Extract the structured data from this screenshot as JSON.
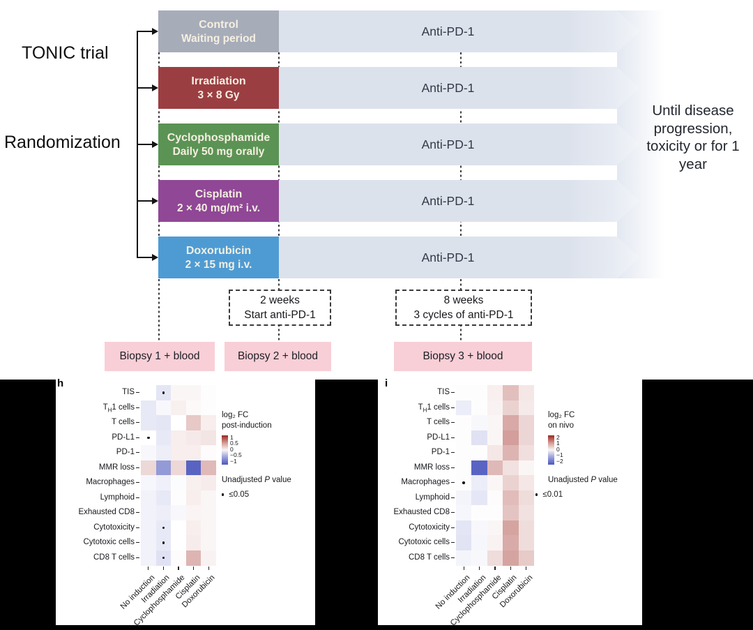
{
  "trial": {
    "title": "TONIC trial",
    "randomization_label": "Randomization",
    "arms": [
      {
        "name": "Control",
        "detail": "Waiting period",
        "color": "#a7acb9",
        "treatment": "Anti-PD-1"
      },
      {
        "name": "Irradiation",
        "detail": "3 × 8 Gy",
        "color": "#9b3e42",
        "treatment": "Anti-PD-1"
      },
      {
        "name": "Cyclophosphamide",
        "detail": "Daily 50 mg orally",
        "color": "#5b9354",
        "treatment": "Anti-PD-1"
      },
      {
        "name": "Cisplatin",
        "detail": "2 × 40 mg/m² i.v.",
        "color": "#8f4796",
        "treatment": "Anti-PD-1"
      },
      {
        "name": "Doxorubicin",
        "detail": "2 × 15 mg i.v.",
        "color": "#4e9bd4",
        "treatment": "Anti-PD-1"
      }
    ],
    "outcome_note": "Until disease progression, toxicity or for 1 year",
    "milestones": [
      {
        "line1": "2 weeks",
        "line2": "Start anti-PD-1"
      },
      {
        "line1": "8 weeks",
        "line2": "3 cycles of anti-PD-1"
      }
    ],
    "biopsies": [
      "Biopsy 1 + blood",
      "Biopsy 2 + blood",
      "Biopsy 3 + blood"
    ],
    "band_color": "#dce2ec",
    "biopsy_color": "#f9cfd7"
  },
  "heatmap_colors": {
    "positive": "#9d2820",
    "negative": "#4b57bd"
  },
  "chart_data": [
    {
      "type": "heatmap",
      "panel_label": "h",
      "rows": [
        "TIS",
        "TH1 cells",
        "T cells",
        "PD-L1",
        "PD-1",
        "MMR loss",
        "Macrophages",
        "Lymphoid",
        "Exhausted CD8",
        "Cytotoxicity",
        "Cytotoxic cells",
        "CD8 T cells"
      ],
      "columns": [
        "No induction",
        "Irradiation",
        "Cyclophosphamide",
        "Cisplatin",
        "Doxorubicin"
      ],
      "scale_max": 1,
      "values": [
        [
          0.0,
          -0.15,
          0.04,
          0.04,
          0.01
        ],
        [
          -0.13,
          -0.04,
          0.07,
          0.03,
          0.01
        ],
        [
          -0.13,
          -0.15,
          0.0,
          0.25,
          0.08
        ],
        [
          0.0,
          -0.13,
          0.08,
          0.1,
          0.12
        ],
        [
          -0.04,
          -0.1,
          0.08,
          0.08,
          0.02
        ],
        [
          0.18,
          -0.6,
          0.18,
          -0.92,
          0.32
        ],
        [
          -0.05,
          -0.09,
          -0.02,
          0.07,
          0.09
        ],
        [
          -0.08,
          -0.13,
          0.01,
          0.08,
          0.04
        ],
        [
          -0.07,
          -0.1,
          -0.04,
          0.05,
          0.04
        ],
        [
          -0.08,
          -0.13,
          0.0,
          0.08,
          0.04
        ],
        [
          -0.08,
          -0.13,
          0.0,
          0.09,
          0.04
        ],
        [
          -0.08,
          -0.17,
          0.02,
          0.35,
          0.06
        ]
      ],
      "significant_cells": [
        [
          0,
          1
        ],
        [
          3,
          0
        ],
        [
          9,
          1
        ],
        [
          10,
          1
        ],
        [
          11,
          1
        ]
      ],
      "legend": {
        "title_line1": "log₂ FC",
        "title_line2": "post-induction",
        "colorbar_ticks": [
          "1",
          "0.5",
          "0",
          "−0.5",
          "−1"
        ],
        "pvalue_title": "Unadjusted P value",
        "pvalue_threshold": "≤0.05"
      }
    },
    {
      "type": "heatmap",
      "panel_label": "i",
      "rows": [
        "TIS",
        "TH1 cells",
        "T cells",
        "PD-L1",
        "PD-1",
        "MMR loss",
        "Macrophages",
        "Lymphoid",
        "Exhausted CD8",
        "Cytotoxicity",
        "Cytotoxic cells",
        "CD8 T cells"
      ],
      "columns": [
        "No induction",
        "Irradiation",
        "Cyclophosphamide",
        "Cisplatin",
        "Doxorubicin"
      ],
      "scale_max": 2,
      "values": [
        [
          0.02,
          0.02,
          0.15,
          0.6,
          0.22
        ],
        [
          -0.22,
          0.02,
          0.12,
          0.42,
          0.2
        ],
        [
          0.02,
          -0.08,
          0.08,
          0.8,
          0.38
        ],
        [
          0.02,
          -0.35,
          0.08,
          0.9,
          0.38
        ],
        [
          0.02,
          0.02,
          0.22,
          0.7,
          0.3
        ],
        [
          0.02,
          -1.85,
          0.65,
          0.28,
          0.08
        ],
        [
          0.02,
          -0.22,
          0.08,
          0.42,
          0.22
        ],
        [
          -0.12,
          -0.28,
          0.04,
          0.62,
          0.32
        ],
        [
          -0.1,
          0.02,
          0.02,
          0.55,
          0.28
        ],
        [
          -0.3,
          -0.08,
          0.08,
          0.85,
          0.32
        ],
        [
          -0.32,
          -0.1,
          0.12,
          0.78,
          0.32
        ],
        [
          -0.12,
          -0.08,
          0.32,
          0.85,
          0.48
        ]
      ],
      "significant_cells": [
        [
          6,
          0
        ]
      ],
      "legend": {
        "title_line1": "log₂ FC",
        "title_line2": "on nivo",
        "colorbar_ticks": [
          "2",
          "1",
          "0",
          "−1",
          "−2"
        ],
        "pvalue_title": "Unadjusted P value",
        "pvalue_threshold": "≤0.01"
      }
    }
  ]
}
